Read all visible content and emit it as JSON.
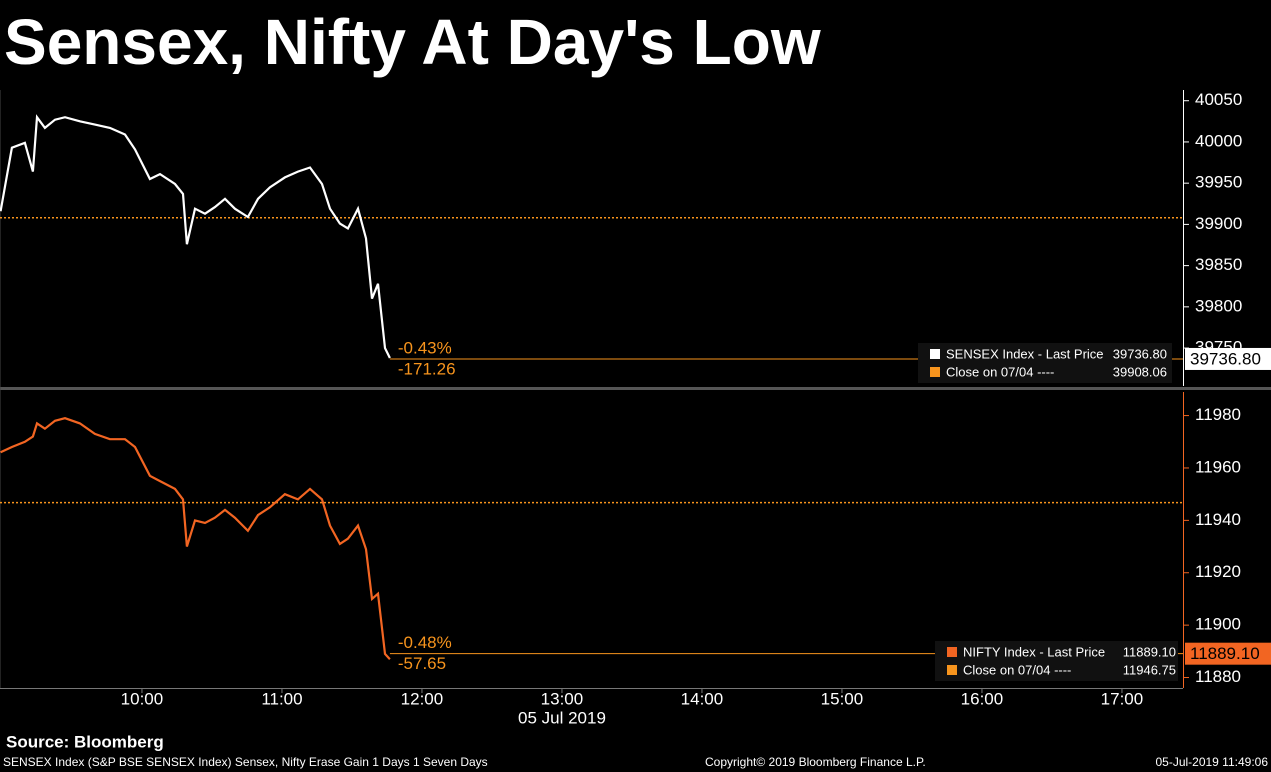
{
  "title": "Sensex, Nifty At Day's Low",
  "chart_data": [
    {
      "type": "line",
      "x": [
        8.99,
        9.071,
        9.164,
        9.221,
        9.25,
        9.307,
        9.379,
        9.45,
        9.557,
        9.664,
        9.771,
        9.879,
        9.95,
        10.057,
        10.129,
        10.236,
        10.293,
        10.321,
        10.379,
        10.45,
        10.521,
        10.593,
        10.664,
        10.757,
        10.829,
        10.914,
        11.021,
        11.114,
        11.2,
        11.286,
        11.343,
        11.414,
        11.471,
        11.543,
        11.6,
        11.643,
        11.686,
        11.736,
        11.771
      ],
      "series": [
        {
          "name": "SENSEX Index - Last Price",
          "color": "#ffffff",
          "values": [
            39916,
            39993,
            39999,
            39964,
            40030,
            40017,
            40027,
            40030,
            40025,
            40021,
            40017,
            40009,
            39991,
            39955,
            39961,
            39949,
            39937,
            39876,
            39919,
            39913,
            39921,
            39931,
            39919,
            39909,
            39931,
            39945,
            39957,
            39964,
            39969,
            39949,
            39919,
            39901,
            39895,
            39919,
            39883,
            39810,
            39828,
            39750,
            39738
          ]
        }
      ],
      "last_price": {
        "value": 39736.8,
        "label": "39736.80"
      },
      "close": {
        "name": "Close on 07/04 ----",
        "value": 39908.06,
        "color": "#f7941d"
      },
      "change_pct": {
        "value": -0.43,
        "label": "-0.43%"
      },
      "change": -171.26,
      "xlim": [
        8.986,
        17.436
      ],
      "ylim": [
        39704,
        40063
      ],
      "yticks": [
        39750,
        39800,
        39850,
        39900,
        39950,
        40000,
        40050
      ],
      "axis_color": "#ffffff"
    },
    {
      "type": "line",
      "x": [
        8.99,
        9.071,
        9.164,
        9.221,
        9.25,
        9.307,
        9.379,
        9.45,
        9.557,
        9.664,
        9.771,
        9.879,
        9.95,
        10.057,
        10.129,
        10.236,
        10.293,
        10.321,
        10.379,
        10.45,
        10.521,
        10.593,
        10.664,
        10.757,
        10.829,
        10.914,
        11.021,
        11.114,
        11.2,
        11.286,
        11.343,
        11.414,
        11.471,
        11.543,
        11.6,
        11.643,
        11.686,
        11.736,
        11.771
      ],
      "series": [
        {
          "name": "NIFTY Index - Last Price",
          "color": "#f26522",
          "values": [
            11966,
            11968,
            11970,
            11972,
            11977,
            11975,
            11978,
            11979,
            11977,
            11973,
            11971,
            11971,
            11968,
            11957,
            11955,
            11952,
            11948,
            11930,
            11940,
            11939,
            11941,
            11944,
            11941,
            11936,
            11942,
            11945,
            11950,
            11948,
            11952,
            11948,
            11938,
            11931,
            11933,
            11938,
            11929,
            11910,
            11912,
            11889,
            11887
          ]
        }
      ],
      "last_price": {
        "value": 11889.1,
        "label": "11889.10"
      },
      "close": {
        "name": "Close on 07/04 ----",
        "value": 11946.75,
        "color": "#f7941d"
      },
      "change_pct": {
        "value": -0.48,
        "label": "-0.48%"
      },
      "change": -57.65,
      "xlim": [
        8.986,
        17.436
      ],
      "ylim": [
        11876,
        11989
      ],
      "yticks": [
        11880,
        11900,
        11920,
        11940,
        11960,
        11980
      ],
      "xticks": [
        {
          "value": 10,
          "label": "10:00"
        },
        {
          "value": 11,
          "label": "11:00"
        },
        {
          "value": 12,
          "label": "12:00"
        },
        {
          "value": 13,
          "label": "13:00"
        },
        {
          "value": 14,
          "label": "14:00"
        },
        {
          "value": 15,
          "label": "15:00"
        },
        {
          "value": 16,
          "label": "16:00"
        },
        {
          "value": 17,
          "label": "17:00"
        }
      ],
      "x_label": "05 Jul 2019",
      "axis_color": "#f26522"
    }
  ],
  "footer": {
    "source": "Source: Bloomberg",
    "description": "SENSEX Index (S&P BSE SENSEX Index) Sensex, Nifty Erase Gain 1 Days 1 Seven Days",
    "copyright": "Copyright© 2019 Bloomberg Finance L.P.",
    "timestamp": "05-Jul-2019 11:49:06"
  }
}
